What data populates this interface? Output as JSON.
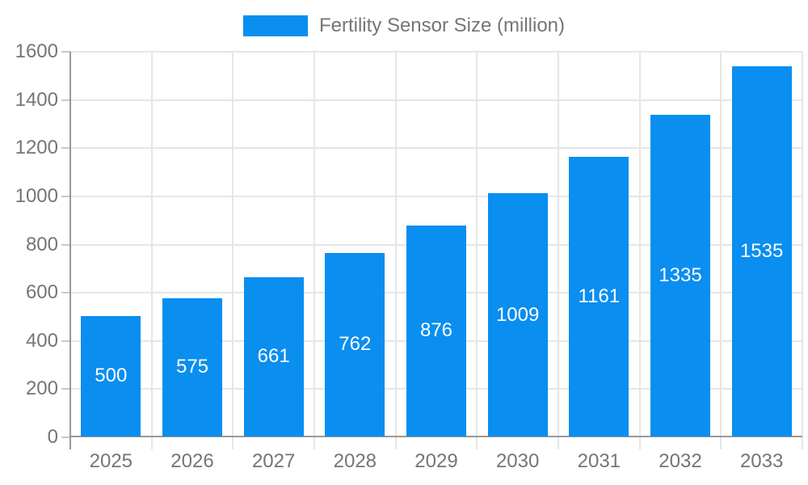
{
  "legend": {
    "label": "Fertility Sensor Size (million)"
  },
  "chart_data": {
    "type": "bar",
    "title": "Fertility Sensor Size (million)",
    "categories": [
      "2025",
      "2026",
      "2027",
      "2028",
      "2029",
      "2030",
      "2031",
      "2032",
      "2033"
    ],
    "values": [
      500,
      575,
      661,
      762,
      876,
      1009,
      1161,
      1335,
      1535
    ],
    "series": [
      {
        "name": "Fertility Sensor Size (million)",
        "values": [
          500,
          575,
          661,
          762,
          876,
          1009,
          1161,
          1335,
          1535
        ]
      }
    ],
    "xlabel": "",
    "ylabel": "",
    "ylim": [
      0,
      1600
    ],
    "ytick_step": 200,
    "yticks": [
      0,
      200,
      400,
      600,
      800,
      1000,
      1200,
      1400,
      1600
    ],
    "grid": true,
    "legend_position": "top",
    "value_labels_inside_bars": true
  },
  "colors": {
    "bar": "#0a8ef0",
    "axis": "#999999",
    "gridline": "#e6e6e6",
    "tick": "#c8c8c8",
    "label_text": "#757575",
    "value_text": "#ffffff",
    "background": "#ffffff"
  }
}
